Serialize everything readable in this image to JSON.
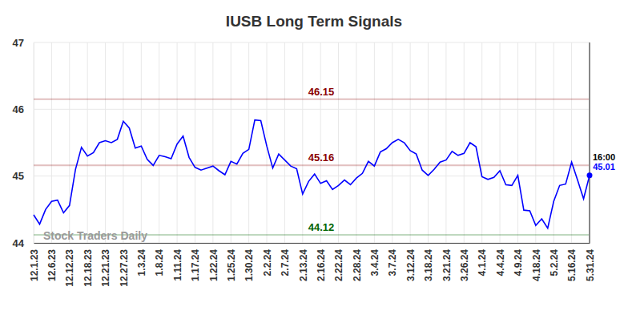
{
  "chart_data": {
    "type": "line",
    "title": "IUSB Long Term Signals",
    "categories": [
      "12.1.23",
      null,
      null,
      "12.6.23",
      null,
      null,
      "12.12.23",
      null,
      null,
      "12.18.23",
      null,
      null,
      "12.21.23",
      null,
      null,
      "12.27.23",
      null,
      null,
      "1.3.24",
      null,
      null,
      "1.8.24",
      null,
      null,
      "1.11.24",
      null,
      null,
      "1.17.24",
      null,
      null,
      "1.22.24",
      null,
      null,
      "1.25.24",
      null,
      null,
      "1.30.24",
      null,
      null,
      "2.2.24",
      null,
      null,
      "2.7.24",
      null,
      null,
      "2.13.24",
      null,
      null,
      "2.16.24",
      null,
      null,
      "2.22.24",
      null,
      null,
      "2.28.24",
      null,
      null,
      "3.4.24",
      null,
      null,
      "3.7.24",
      null,
      null,
      "3.12.24",
      null,
      null,
      "3.18.24",
      null,
      null,
      "3.21.24",
      null,
      null,
      "3.26.24",
      null,
      null,
      "4.1.24",
      null,
      null,
      "4.4.24",
      null,
      null,
      "4.9.24",
      null,
      null,
      "4.18.24",
      null,
      null,
      "5.2.24",
      null,
      null,
      "5.16.24",
      null,
      null,
      "5.31.24"
    ],
    "values": [
      44.42,
      44.28,
      44.5,
      44.62,
      44.64,
      44.45,
      44.56,
      45.1,
      45.43,
      45.3,
      45.35,
      45.5,
      45.53,
      45.5,
      45.55,
      45.82,
      45.72,
      45.42,
      45.45,
      45.25,
      45.16,
      45.31,
      45.29,
      45.26,
      45.48,
      45.6,
      45.28,
      45.13,
      45.09,
      45.12,
      45.15,
      45.08,
      45.02,
      45.22,
      45.18,
      45.34,
      45.4,
      45.84,
      45.83,
      45.45,
      45.12,
      45.33,
      45.24,
      45.15,
      45.11,
      44.73,
      44.92,
      45.03,
      44.89,
      44.93,
      44.8,
      44.86,
      44.94,
      44.87,
      44.97,
      45.04,
      45.22,
      45.15,
      45.36,
      45.41,
      45.5,
      45.55,
      45.5,
      45.38,
      45.33,
      45.09,
      45.01,
      45.1,
      45.21,
      45.24,
      45.37,
      45.31,
      45.34,
      45.5,
      45.44,
      44.99,
      44.95,
      44.98,
      45.08,
      44.87,
      44.86,
      45.01,
      44.49,
      44.48,
      44.26,
      44.36,
      44.22,
      44.62,
      44.86,
      44.88,
      45.21,
      44.94,
      44.66,
      45.01
    ],
    "color": "#0000ff",
    "ylim": [
      44,
      47
    ],
    "yticks": [
      44,
      45,
      46,
      47
    ],
    "grid": true,
    "reference_lines": [
      {
        "value": 46.15,
        "label": "46.15",
        "color": "#8b0000"
      },
      {
        "value": 45.16,
        "label": "45.16",
        "color": "#8b0000"
      },
      {
        "value": 44.12,
        "label": "44.12",
        "color": "#006400"
      }
    ],
    "annotations": [
      "16:00",
      "Stock Traders Daily"
    ]
  }
}
